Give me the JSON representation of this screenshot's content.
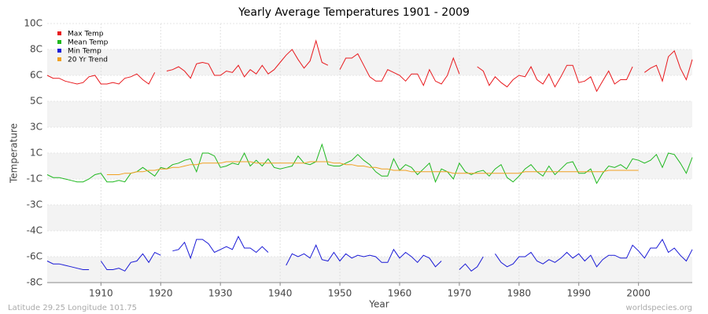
{
  "chart_data": {
    "type": "line",
    "title": "Yearly Average Temperatures 1901 - 2009",
    "ylabel": "Temperature",
    "xlabel": "Year",
    "footer_left": "Latitude 29.25 Longitude 101.75",
    "footer_right": "worldspecies.org",
    "legend": "upper left",
    "grid": true,
    "xlim": [
      1901,
      2009
    ],
    "xticks": [
      1910,
      1920,
      1930,
      1940,
      1950,
      1960,
      1970,
      1980,
      1990,
      2000
    ],
    "ylim": [
      -8,
      10
    ],
    "yticks": [
      {
        "value": -8,
        "label": "-8C"
      },
      {
        "value": -6.2,
        "label": "-6C"
      },
      {
        "value": -4.4,
        "label": "-4C"
      },
      {
        "value": -2.6,
        "label": "-3C"
      },
      {
        "value": -0.8,
        "label": "-1C"
      },
      {
        "value": 1,
        "label": "1C"
      },
      {
        "value": 2.8,
        "label": "3C"
      },
      {
        "value": 4.6,
        "label": "5C"
      },
      {
        "value": 6.4,
        "label": "6C"
      },
      {
        "value": 8.2,
        "label": "8C"
      },
      {
        "value": 10,
        "label": "10C"
      }
    ],
    "x": [
      1901,
      1902,
      1903,
      1904,
      1905,
      1906,
      1907,
      1908,
      1909,
      1910,
      1911,
      1912,
      1913,
      1914,
      1915,
      1916,
      1917,
      1918,
      1919,
      1920,
      1921,
      1922,
      1923,
      1924,
      1925,
      1926,
      1927,
      1928,
      1929,
      1930,
      1931,
      1932,
      1933,
      1934,
      1935,
      1936,
      1937,
      1938,
      1939,
      1940,
      1941,
      1942,
      1943,
      1944,
      1945,
      1946,
      1947,
      1948,
      1949,
      1950,
      1951,
      1952,
      1953,
      1954,
      1955,
      1956,
      1957,
      1958,
      1959,
      1960,
      1961,
      1962,
      1963,
      1964,
      1965,
      1966,
      1967,
      1968,
      1969,
      1970,
      1971,
      1972,
      1973,
      1974,
      1975,
      1976,
      1977,
      1978,
      1979,
      1980,
      1981,
      1982,
      1983,
      1984,
      1985,
      1986,
      1987,
      1988,
      1989,
      1990,
      1991,
      1992,
      1993,
      1994,
      1995,
      1996,
      1997,
      1998,
      1999,
      2000,
      2001,
      2002,
      2003,
      2004,
      2005,
      2006,
      2007,
      2008,
      2009
    ],
    "series": [
      {
        "name": "Max Temp",
        "color": "#e8191d",
        "values": [
          6.4,
          6.2,
          6.2,
          6.0,
          5.9,
          5.8,
          5.9,
          6.3,
          6.4,
          5.8,
          5.8,
          5.9,
          5.8,
          6.2,
          6.3,
          6.5,
          6.1,
          5.8,
          6.6,
          null,
          6.7,
          6.8,
          7.0,
          6.7,
          6.2,
          7.2,
          7.3,
          7.2,
          6.4,
          6.4,
          6.7,
          6.6,
          7.1,
          6.3,
          6.8,
          6.5,
          7.1,
          6.5,
          6.8,
          7.3,
          7.8,
          8.2,
          7.5,
          6.9,
          7.4,
          8.8,
          7.3,
          7.1,
          null,
          6.8,
          7.6,
          7.6,
          7.9,
          7.1,
          6.3,
          6.0,
          6.0,
          6.8,
          6.6,
          6.4,
          6.0,
          6.5,
          6.5,
          5.7,
          6.8,
          6.0,
          5.8,
          6.4,
          7.6,
          6.5,
          null,
          null,
          7.0,
          6.7,
          5.7,
          6.3,
          5.9,
          5.6,
          6.1,
          6.4,
          6.3,
          7.0,
          6.1,
          5.8,
          6.5,
          5.6,
          6.3,
          7.1,
          7.1,
          5.9,
          6.0,
          6.3,
          5.3,
          6.0,
          6.7,
          5.8,
          6.1,
          6.1,
          7.0,
          null,
          6.6,
          6.9,
          7.1,
          6.0,
          7.7,
          8.1,
          6.9,
          6.1,
          7.5
        ]
      },
      {
        "name": "Mean Temp",
        "color": "#1fb81f",
        "values": [
          -0.5,
          -0.7,
          -0.7,
          -0.8,
          -0.9,
          -1.0,
          -1.0,
          -0.8,
          -0.5,
          -0.4,
          -1.0,
          -1.0,
          -0.9,
          -1.0,
          -0.4,
          -0.3,
          0.0,
          -0.3,
          -0.6,
          0.0,
          -0.1,
          0.2,
          0.3,
          0.5,
          0.6,
          -0.3,
          1.0,
          1.0,
          0.8,
          0.0,
          0.1,
          0.3,
          0.2,
          1.0,
          0.1,
          0.5,
          0.1,
          0.6,
          0.0,
          -0.1,
          0.0,
          0.1,
          0.8,
          0.3,
          0.2,
          0.4,
          1.6,
          0.2,
          0.1,
          0.1,
          0.3,
          0.5,
          0.9,
          0.5,
          0.2,
          -0.3,
          -0.6,
          -0.6,
          0.6,
          -0.2,
          0.2,
          0.0,
          -0.5,
          -0.1,
          0.3,
          -1.0,
          -0.1,
          -0.3,
          -0.8,
          0.3,
          -0.3,
          -0.5,
          -0.3,
          -0.2,
          -0.6,
          -0.1,
          0.2,
          -0.7,
          -1.0,
          -0.6,
          -0.1,
          0.2,
          -0.3,
          -0.6,
          0.1,
          -0.5,
          -0.1,
          0.3,
          0.4,
          -0.4,
          -0.4,
          -0.1,
          -1.1,
          -0.4,
          0.1,
          0.0,
          0.2,
          -0.1,
          0.6,
          0.5,
          0.3,
          0.5,
          0.9,
          0.0,
          1.0,
          0.9,
          0.3,
          -0.4,
          0.7
        ]
      },
      {
        "name": "Min Temp",
        "color": "#1a1ad6",
        "values": [
          -6.5,
          -6.7,
          -6.7,
          -6.8,
          -6.9,
          -7.0,
          -7.1,
          -7.1,
          null,
          -6.5,
          -7.1,
          -7.1,
          -7.0,
          -7.2,
          -6.6,
          -6.5,
          -6.0,
          -6.6,
          -5.9,
          -6.1,
          null,
          -5.8,
          -5.7,
          -5.2,
          -6.3,
          -5.0,
          -5.0,
          -5.3,
          -5.9,
          -5.7,
          -5.5,
          -5.7,
          -4.8,
          -5.6,
          -5.6,
          -5.9,
          -5.5,
          -5.9,
          null,
          null,
          -6.8,
          -6.0,
          -6.2,
          -6.0,
          -6.3,
          -5.4,
          -6.4,
          -6.5,
          -5.9,
          -6.5,
          -6.0,
          -6.3,
          -6.1,
          -6.2,
          -6.1,
          -6.2,
          -6.6,
          -6.6,
          -5.7,
          -6.3,
          -5.9,
          -6.2,
          -6.6,
          -6.1,
          -6.3,
          -6.9,
          -6.5,
          null,
          null,
          -7.1,
          -6.7,
          -7.2,
          -6.9,
          -6.2,
          null,
          -6.0,
          -6.6,
          -6.9,
          -6.7,
          -6.2,
          -6.2,
          -5.9,
          -6.5,
          -6.7,
          -6.4,
          -6.6,
          -6.3,
          -5.9,
          -6.3,
          -6.0,
          -6.5,
          -6.1,
          -6.9,
          -6.4,
          -6.1,
          -6.1,
          -6.3,
          -6.3,
          -5.4,
          -5.8,
          -6.3,
          -5.6,
          -5.6,
          -5.0,
          -5.9,
          -5.6,
          -6.1,
          -6.5,
          -5.7
        ]
      },
      {
        "name": "20 Yr Trend",
        "color": "#f0a020",
        "values": [
          null,
          null,
          null,
          null,
          null,
          null,
          null,
          null,
          null,
          null,
          -0.5,
          -0.5,
          -0.5,
          -0.4,
          -0.4,
          -0.3,
          -0.3,
          -0.2,
          -0.2,
          -0.1,
          -0.1,
          0.0,
          0.0,
          0.1,
          0.2,
          0.2,
          0.3,
          0.3,
          0.3,
          0.3,
          0.4,
          0.4,
          0.4,
          0.4,
          0.4,
          0.3,
          0.3,
          0.3,
          0.3,
          0.3,
          0.3,
          0.3,
          0.3,
          0.3,
          0.4,
          0.4,
          0.4,
          0.4,
          0.3,
          0.3,
          0.2,
          0.2,
          0.1,
          0.1,
          0.0,
          0.0,
          -0.1,
          -0.1,
          -0.2,
          -0.2,
          -0.2,
          -0.3,
          -0.3,
          -0.3,
          -0.3,
          -0.3,
          -0.3,
          -0.3,
          -0.4,
          -0.4,
          -0.4,
          -0.4,
          -0.4,
          -0.4,
          -0.4,
          -0.4,
          -0.4,
          -0.4,
          -0.4,
          -0.4,
          -0.3,
          -0.3,
          -0.3,
          -0.3,
          -0.3,
          -0.3,
          -0.3,
          -0.3,
          -0.3,
          -0.3,
          -0.3,
          -0.3,
          -0.3,
          -0.3,
          -0.2,
          -0.2,
          -0.2,
          -0.2,
          -0.2,
          -0.2,
          null,
          null,
          null,
          null,
          null,
          null,
          null,
          null,
          null
        ]
      }
    ]
  }
}
